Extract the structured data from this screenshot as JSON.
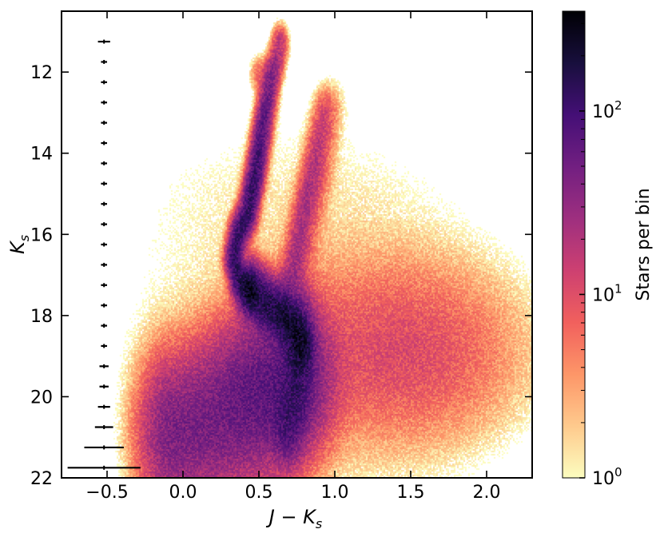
{
  "chart_data": {
    "type": "heatmap",
    "xlabel": "J − K",
    "xlabel_sub": "s",
    "ylabel": "K",
    "ylabel_sub": "s",
    "xlim": [
      -0.8,
      2.3
    ],
    "ylim": [
      22,
      10.5
    ],
    "y_inverted": true,
    "x_ticks": [
      -0.5,
      0.0,
      0.5,
      1.0,
      1.5,
      2.0
    ],
    "x_tick_labels": [
      "−0.5",
      "0.0",
      "0.5",
      "1.0",
      "1.5",
      "2.0"
    ],
    "y_ticks": [
      12,
      14,
      16,
      18,
      20,
      22
    ],
    "y_tick_labels": [
      "12",
      "14",
      "16",
      "18",
      "20",
      "22"
    ],
    "colorbar": {
      "label": "Stars per bin",
      "scale": "log",
      "range": [
        1,
        350
      ],
      "ticks": [
        {
          "value": 1,
          "base": "10",
          "exp": "0"
        },
        {
          "value": 10,
          "base": "10",
          "exp": "1"
        },
        {
          "value": 100,
          "base": "10",
          "exp": "2"
        }
      ],
      "colormap": "magma_r",
      "stops": [
        "#fcfdbf",
        "#feca8d",
        "#fd9668",
        "#f1605d",
        "#cd4071",
        "#9e2f7f",
        "#721f81",
        "#440f76",
        "#180f3d",
        "#000004"
      ]
    },
    "error_bars": [
      {
        "mag": 11.25,
        "x": -0.52,
        "xerr": 0.04
      },
      {
        "mag": 11.75,
        "x": -0.52,
        "xerr": 0.02
      },
      {
        "mag": 12.25,
        "x": -0.52,
        "xerr": 0.02
      },
      {
        "mag": 12.75,
        "x": -0.52,
        "xerr": 0.02
      },
      {
        "mag": 13.25,
        "x": -0.52,
        "xerr": 0.02
      },
      {
        "mag": 13.75,
        "x": -0.52,
        "xerr": 0.02
      },
      {
        "mag": 14.25,
        "x": -0.52,
        "xerr": 0.02
      },
      {
        "mag": 14.75,
        "x": -0.52,
        "xerr": 0.02
      },
      {
        "mag": 15.25,
        "x": -0.52,
        "xerr": 0.02
      },
      {
        "mag": 15.75,
        "x": -0.52,
        "xerr": 0.02
      },
      {
        "mag": 16.25,
        "x": -0.52,
        "xerr": 0.02
      },
      {
        "mag": 16.75,
        "x": -0.52,
        "xerr": 0.02
      },
      {
        "mag": 17.25,
        "x": -0.52,
        "xerr": 0.02
      },
      {
        "mag": 17.75,
        "x": -0.52,
        "xerr": 0.02
      },
      {
        "mag": 18.25,
        "x": -0.52,
        "xerr": 0.02
      },
      {
        "mag": 18.75,
        "x": -0.52,
        "xerr": 0.02
      },
      {
        "mag": 19.25,
        "x": -0.52,
        "xerr": 0.03
      },
      {
        "mag": 19.75,
        "x": -0.52,
        "xerr": 0.03
      },
      {
        "mag": 20.25,
        "x": -0.52,
        "xerr": 0.04
      },
      {
        "mag": 20.75,
        "x": -0.52,
        "xerr": 0.06
      },
      {
        "mag": 21.25,
        "x": -0.52,
        "xerr": 0.13
      },
      {
        "mag": 21.75,
        "x": -0.52,
        "xerr": 0.24
      }
    ],
    "density_features": [
      {
        "feature": "upper branch",
        "path": [
          [
            0.64,
            11.3
          ],
          [
            0.58,
            12.2
          ],
          [
            0.53,
            13.3
          ],
          [
            0.48,
            14.5
          ],
          [
            0.43,
            15.5
          ],
          [
            0.37,
            16.0
          ],
          [
            0.34,
            16.6
          ],
          [
            0.37,
            17.1
          ],
          [
            0.45,
            17.4
          ]
        ],
        "peak": 120,
        "width": 0.03
      },
      {
        "feature": "clump",
        "path": [
          [
            0.5,
            12.0
          ],
          [
            0.57,
            12.0
          ]
        ],
        "peak": 20,
        "width": 0.03
      },
      {
        "feature": "lower branch",
        "path": [
          [
            0.45,
            17.4
          ],
          [
            0.56,
            17.75
          ],
          [
            0.66,
            18.0
          ],
          [
            0.73,
            18.3
          ],
          [
            0.78,
            18.7
          ]
        ],
        "peak": 150,
        "width": 0.045
      },
      {
        "feature": "lower vertical band",
        "path": [
          [
            0.76,
            18.3
          ],
          [
            0.76,
            19.2
          ],
          [
            0.74,
            20.2
          ],
          [
            0.7,
            20.7
          ]
        ],
        "peak": 60,
        "width": 0.06
      },
      {
        "feature": "second branch",
        "path": [
          [
            0.93,
            13.0
          ],
          [
            0.85,
            14.5
          ],
          [
            0.78,
            15.8
          ],
          [
            0.73,
            16.8
          ],
          [
            0.68,
            17.4
          ],
          [
            0.66,
            18.0
          ]
        ],
        "peak": 18,
        "width": 0.04
      },
      {
        "feature": "third branch",
        "path": [
          [
            0.98,
            12.8
          ],
          [
            0.9,
            14.5
          ],
          [
            0.82,
            15.8
          ],
          [
            0.76,
            17.0
          ]
        ],
        "peak": 6,
        "width": 0.05
      },
      {
        "feature": "bottom sequence",
        "path": [
          [
            -0.05,
            20.9
          ],
          [
            0.2,
            20.7
          ],
          [
            0.45,
            20.4
          ],
          [
            0.65,
            20.1
          ],
          [
            0.75,
            19.6
          ]
        ],
        "peak": 45,
        "width": 0.13
      },
      {
        "feature": "central cloud",
        "peak": 30,
        "center": [
          0.55,
          19.5
        ],
        "spread": [
          0.22,
          0.9
        ]
      },
      {
        "feature": "red envelope",
        "peak": 10,
        "center": [
          1.45,
          18.9
        ],
        "spread": [
          0.45,
          1.3
        ]
      },
      {
        "feature": "diffuse background",
        "peak": 1.5,
        "center": [
          0.75,
          17.5
        ],
        "spread": [
          0.75,
          4.0
        ]
      }
    ]
  }
}
